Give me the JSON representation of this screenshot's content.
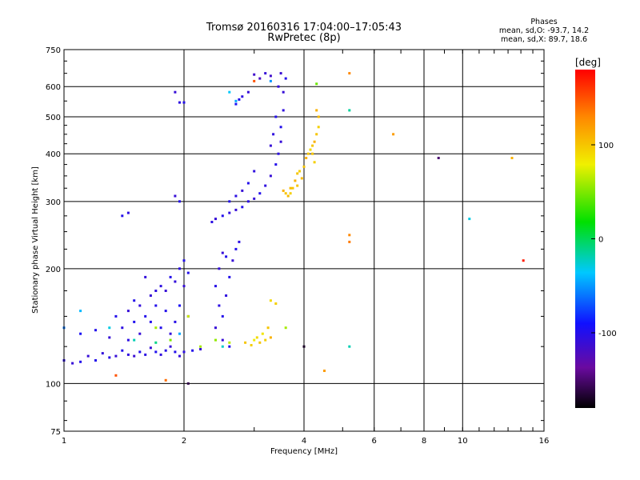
{
  "title": {
    "line1": "Tromsø 20160316 17:04:00–17:05:43",
    "line2": "RwPretec (8p)"
  },
  "phases": {
    "heading": "Phases",
    "o_line": "mean, sd,O: -93.7, 14.2",
    "x_line": "mean, sd,X: 89.7, 18.6"
  },
  "colorbar": {
    "label": "[deg]",
    "ticks": [
      {
        "value": 100,
        "label": "100"
      },
      {
        "value": 0,
        "label": "0"
      },
      {
        "value": -100,
        "label": "-100"
      }
    ],
    "range": [
      -180,
      180
    ]
  },
  "chart_data": {
    "type": "scatter",
    "xlabel": "Frequency [MHz]",
    "ylabel": "Stationary phase Virtual Height [km]",
    "x_scale": "log",
    "y_scale": "log",
    "xlim": [
      1,
      16
    ],
    "ylim": [
      75,
      750
    ],
    "x_ticks": [
      {
        "value": 1,
        "label": "1"
      },
      {
        "value": 2,
        "label": "2"
      },
      {
        "value": 4,
        "label": "4"
      },
      {
        "value": 6,
        "label": "6"
      },
      {
        "value": 8,
        "label": "8"
      },
      {
        "value": 10,
        "label": "10"
      },
      {
        "value": 16,
        "label": "16"
      }
    ],
    "y_ticks": [
      {
        "value": 75,
        "label": "75"
      },
      {
        "value": 100,
        "label": "100"
      },
      {
        "value": 200,
        "label": "200"
      },
      {
        "value": 300,
        "label": "300"
      },
      {
        "value": 400,
        "label": "400"
      },
      {
        "value": 500,
        "label": "500"
      },
      {
        "value": 600,
        "label": "600"
      },
      {
        "value": 750,
        "label": "750"
      }
    ],
    "grid_x": [
      2,
      4,
      6,
      8,
      10
    ],
    "grid_y": [
      100,
      200,
      300,
      400,
      500,
      600
    ],
    "grid": true,
    "color_by": "phase [deg]",
    "colors": {
      "o_mode": "#2a3cf0",
      "x_mode": "#f0e010"
    },
    "series": [
      {
        "points": [
          [
            1.0,
            115,
            -105
          ],
          [
            1.05,
            113,
            -110
          ],
          [
            1.1,
            114,
            -100
          ],
          [
            1.15,
            118,
            -110
          ],
          [
            1.2,
            115,
            -100
          ],
          [
            1.25,
            120,
            -108
          ],
          [
            1.3,
            117,
            -102
          ],
          [
            1.35,
            118,
            -110
          ],
          [
            1.4,
            122,
            -100
          ],
          [
            1.45,
            119,
            -106
          ],
          [
            1.5,
            118,
            -112
          ],
          [
            1.55,
            121,
            -100
          ],
          [
            1.6,
            119,
            -104
          ],
          [
            1.65,
            124,
            -110
          ],
          [
            1.7,
            121,
            -98
          ],
          [
            1.75,
            119,
            -106
          ],
          [
            1.8,
            122,
            -102
          ],
          [
            1.85,
            125,
            -110
          ],
          [
            1.9,
            121,
            -100
          ],
          [
            1.95,
            118,
            -108
          ],
          [
            2.0,
            121,
            -104
          ],
          [
            2.1,
            122,
            -100
          ],
          [
            2.2,
            123,
            -110
          ],
          [
            1.1,
            135,
            -95
          ],
          [
            1.2,
            138,
            -100
          ],
          [
            1.3,
            132,
            -110
          ],
          [
            1.35,
            150,
            -100
          ],
          [
            1.4,
            140,
            -105
          ],
          [
            1.45,
            155,
            -110
          ],
          [
            1.5,
            145,
            -98
          ],
          [
            1.55,
            160,
            -108
          ],
          [
            1.6,
            150,
            -100
          ],
          [
            1.65,
            170,
            -110
          ],
          [
            1.7,
            160,
            -100
          ],
          [
            1.75,
            180,
            -105
          ],
          [
            1.8,
            175,
            -110
          ],
          [
            1.85,
            190,
            -100
          ],
          [
            1.9,
            185,
            -108
          ],
          [
            1.95,
            200,
            -104
          ],
          [
            2.0,
            210,
            -100
          ],
          [
            2.0,
            180,
            -110
          ],
          [
            1.95,
            160,
            -95
          ],
          [
            1.9,
            145,
            -102
          ],
          [
            1.85,
            135,
            -108
          ],
          [
            1.75,
            140,
            -100
          ],
          [
            1.7,
            175,
            -106
          ],
          [
            1.65,
            145,
            -100
          ],
          [
            1.55,
            135,
            -110
          ],
          [
            1.5,
            165,
            -100
          ],
          [
            1.45,
            130,
            -104
          ],
          [
            1.6,
            190,
            -108
          ],
          [
            1.8,
            155,
            -100
          ],
          [
            2.05,
            150,
            -110
          ],
          [
            2.05,
            195,
            -100
          ],
          [
            2.4,
            180,
            -102
          ],
          [
            2.45,
            200,
            -108
          ],
          [
            2.5,
            220,
            -110
          ],
          [
            2.55,
            215,
            -100
          ],
          [
            2.45,
            160,
            -104
          ],
          [
            2.4,
            140,
            -110
          ],
          [
            2.5,
            150,
            -100
          ],
          [
            2.55,
            170,
            -106
          ],
          [
            2.6,
            190,
            -100
          ],
          [
            2.65,
            210,
            -110
          ],
          [
            2.7,
            225,
            -100
          ],
          [
            2.75,
            235,
            -104
          ],
          [
            2.5,
            130,
            -110
          ],
          [
            2.6,
            125,
            -100
          ],
          [
            2.35,
            265,
            -104
          ],
          [
            2.4,
            270,
            -110
          ],
          [
            2.5,
            275,
            -100
          ],
          [
            2.6,
            280,
            -106
          ],
          [
            2.7,
            285,
            -110
          ],
          [
            2.8,
            290,
            -100
          ],
          [
            2.9,
            300,
            -104
          ],
          [
            3.0,
            305,
            -110
          ],
          [
            3.1,
            315,
            -100
          ],
          [
            3.2,
            330,
            -106
          ],
          [
            3.3,
            350,
            -110
          ],
          [
            3.4,
            375,
            -100
          ],
          [
            3.45,
            400,
            -104
          ],
          [
            3.5,
            430,
            -110
          ],
          [
            3.5,
            470,
            -100
          ],
          [
            3.55,
            520,
            -106
          ],
          [
            3.55,
            580,
            -110
          ],
          [
            3.6,
            630,
            -100
          ],
          [
            3.45,
            600,
            -108
          ],
          [
            3.5,
            650,
            -112
          ],
          [
            3.4,
            500,
            -100
          ],
          [
            3.35,
            450,
            -106
          ],
          [
            3.3,
            420,
            -110
          ],
          [
            2.6,
            300,
            -100
          ],
          [
            2.7,
            310,
            -104
          ],
          [
            2.8,
            320,
            -110
          ],
          [
            2.9,
            335,
            -100
          ],
          [
            3.0,
            360,
            -106
          ],
          [
            2.7,
            540,
            -95
          ],
          [
            2.75,
            555,
            -100
          ],
          [
            2.8,
            565,
            -105
          ],
          [
            2.9,
            580,
            -110
          ],
          [
            3.0,
            645,
            -115
          ],
          [
            3.1,
            630,
            -120
          ],
          [
            3.2,
            650,
            -110
          ],
          [
            3.3,
            640,
            -115
          ],
          [
            1.9,
            580,
            -110
          ],
          [
            1.95,
            545,
            -105
          ],
          [
            2.0,
            545,
            -100
          ],
          [
            1.4,
            275,
            -100
          ],
          [
            1.45,
            280,
            -105
          ],
          [
            1.9,
            310,
            -110
          ],
          [
            1.95,
            300,
            -100
          ]
        ]
      },
      {
        "points": [
          [
            3.55,
            320,
            110
          ],
          [
            3.6,
            315,
            100
          ],
          [
            3.65,
            310,
            105
          ],
          [
            3.7,
            315,
            95
          ],
          [
            3.75,
            325,
            100
          ],
          [
            3.8,
            340,
            110
          ],
          [
            3.85,
            355,
            100
          ],
          [
            3.9,
            360,
            95
          ],
          [
            4.0,
            370,
            100
          ],
          [
            4.05,
            390,
            110
          ],
          [
            4.1,
            400,
            100
          ],
          [
            4.15,
            410,
            90
          ],
          [
            4.2,
            420,
            100
          ],
          [
            4.25,
            430,
            110
          ],
          [
            4.3,
            450,
            100
          ],
          [
            4.35,
            470,
            95
          ],
          [
            4.35,
            500,
            105
          ],
          [
            4.3,
            520,
            110
          ],
          [
            4.2,
            400,
            100
          ],
          [
            4.25,
            380,
            95
          ],
          [
            3.95,
            345,
            105
          ],
          [
            3.85,
            330,
            100
          ],
          [
            3.7,
            325,
            105
          ],
          [
            3.0,
            130,
            80
          ],
          [
            3.05,
            132,
            90
          ],
          [
            3.1,
            128,
            100
          ],
          [
            3.15,
            135,
            85
          ],
          [
            3.2,
            130,
            95
          ],
          [
            3.25,
            140,
            100
          ],
          [
            3.3,
            165,
            90
          ],
          [
            3.4,
            162,
            95
          ],
          [
            2.85,
            128,
            100
          ],
          [
            2.95,
            126,
            95
          ],
          [
            3.3,
            132,
            110
          ],
          [
            4.5,
            108,
            120
          ],
          [
            5.2,
            245,
            130
          ],
          [
            5.2,
            235,
            135
          ],
          [
            5.2,
            650,
            130
          ],
          [
            6.7,
            450,
            120
          ],
          [
            13.3,
            390,
            110
          ]
        ]
      },
      {
        "points": [
          [
            1.1,
            155,
            -40
          ],
          [
            1.3,
            140,
            -30
          ],
          [
            1.5,
            130,
            -20
          ],
          [
            1.7,
            128,
            -10
          ],
          [
            1.95,
            135,
            -45
          ],
          [
            2.5,
            125,
            -25
          ],
          [
            5.2,
            520,
            -15
          ],
          [
            5.2,
            125,
            -20
          ],
          [
            10.4,
            270,
            -30
          ],
          [
            3.3,
            620,
            -50
          ],
          [
            2.6,
            580,
            -35
          ],
          [
            2.7,
            550,
            -45
          ],
          [
            1.0,
            140,
            -60
          ]
        ]
      },
      {
        "points": [
          [
            1.7,
            140,
            60
          ],
          [
            1.85,
            130,
            50
          ],
          [
            2.05,
            150,
            70
          ],
          [
            2.2,
            125,
            60
          ],
          [
            2.4,
            130,
            55
          ],
          [
            2.6,
            128,
            65
          ],
          [
            3.6,
            140,
            60
          ],
          [
            4.3,
            610,
            45
          ],
          [
            1.8,
            102,
            140
          ],
          [
            1.35,
            105,
            150
          ],
          [
            14.2,
            210,
            170
          ],
          [
            3.0,
            620,
            150
          ]
        ]
      },
      {
        "points": [
          [
            8.7,
            390,
            -150
          ],
          [
            4.0,
            125,
            -170
          ],
          [
            2.05,
            100,
            -160
          ]
        ]
      }
    ]
  }
}
